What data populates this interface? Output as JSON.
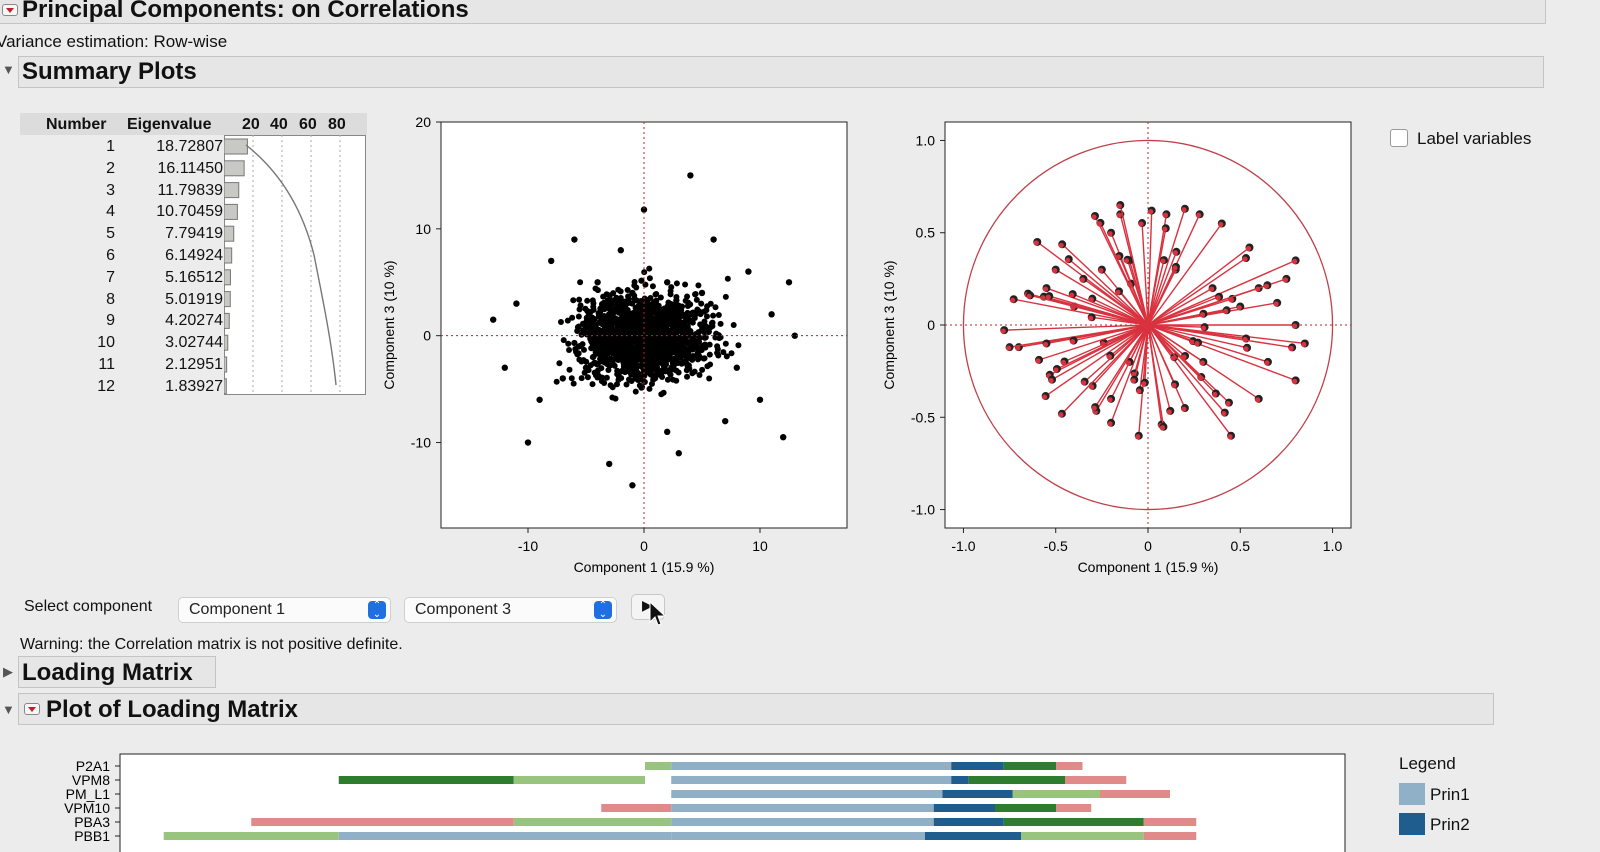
{
  "report": {
    "title": "Principal Components: on Correlations",
    "variance_estimation": "Variance estimation: Row-wise"
  },
  "summary_plots": {
    "title": "Summary Plots",
    "eigen_table": {
      "col_number": "Number",
      "col_eigenvalue": "Eigenvalue",
      "scree_ticks": [
        "20",
        "40",
        "60",
        "80"
      ],
      "rows": [
        {
          "n": "1",
          "v": "18.72807"
        },
        {
          "n": "2",
          "v": "16.11450"
        },
        {
          "n": "3",
          "v": "11.79839"
        },
        {
          "n": "4",
          "v": "10.70459"
        },
        {
          "n": "5",
          "v": "7.79419"
        },
        {
          "n": "6",
          "v": "6.14924"
        },
        {
          "n": "7",
          "v": "5.16512"
        },
        {
          "n": "8",
          "v": "5.01919"
        },
        {
          "n": "9",
          "v": "4.20274"
        },
        {
          "n": "10",
          "v": "3.02744"
        },
        {
          "n": "11",
          "v": "2.12951"
        },
        {
          "n": "12",
          "v": "1.83927"
        }
      ]
    },
    "label_variables": "Label variables"
  },
  "chart_data": [
    {
      "type": "scatter",
      "name": "score-plot",
      "xlabel": "Component 1  (15.9 %)",
      "ylabel": "Component 3  (10 %)",
      "xlim": [
        -17.5,
        17.5
      ],
      "ylim": [
        -18,
        20
      ],
      "xticks": [
        -10,
        0,
        10
      ],
      "yticks": [
        -10,
        0,
        10,
        20
      ],
      "ref_lines": {
        "x": 0,
        "y": 0
      },
      "point_color": "#000000",
      "points": [
        [
          4,
          15
        ],
        [
          0,
          11.8
        ],
        [
          -13,
          1.5
        ],
        [
          -10,
          -10
        ],
        [
          -1,
          -14
        ],
        [
          12.5,
          5
        ],
        [
          13,
          0
        ],
        [
          12,
          -9.5
        ],
        [
          10,
          -6
        ],
        [
          -12,
          -3
        ],
        [
          6,
          9
        ],
        [
          7,
          -8
        ],
        [
          -6,
          9
        ],
        [
          -8,
          7
        ],
        [
          9,
          6
        ],
        [
          -9,
          -6
        ],
        [
          -3,
          -12
        ],
        [
          3,
          -11
        ],
        [
          11,
          2
        ],
        [
          -11,
          3
        ],
        [
          -2,
          8
        ],
        [
          2,
          -9
        ],
        [
          8,
          -3
        ],
        [
          -7,
          -4
        ],
        [
          5,
          4
        ],
        [
          -4,
          5
        ],
        [
          1,
          3
        ],
        [
          -1,
          -2
        ],
        [
          3,
          1
        ],
        [
          -5,
          -3
        ],
        [
          0.5,
          1
        ],
        [
          -0.5,
          -1
        ],
        [
          2,
          2
        ],
        [
          -2,
          1
        ],
        [
          1,
          -1
        ],
        [
          -3,
          2
        ],
        [
          4,
          -2
        ],
        [
          -1,
          4
        ],
        [
          0,
          -3
        ],
        [
          2,
          5
        ]
      ]
    },
    {
      "type": "scatter",
      "name": "loading-plot",
      "xlabel": "Component 1  (15.9 %)",
      "ylabel": "Component 3  (10 %)",
      "xlim": [
        -1.1,
        1.1
      ],
      "ylim": [
        -1.1,
        1.1
      ],
      "xticks": [
        "-1.0",
        "-0.5",
        "0",
        "0.5",
        "1.0"
      ],
      "yticks": [
        "-1.0",
        "-0.5",
        "0",
        "0.5",
        "1.0"
      ],
      "circle_radius": 1.0,
      "arrow_color": "#d9323f",
      "points": [
        [
          -0.6,
          0.45
        ],
        [
          -0.7,
          -0.12
        ],
        [
          -0.75,
          -0.12
        ],
        [
          -0.55,
          -0.1
        ],
        [
          -0.65,
          0.17
        ],
        [
          -0.55,
          0.2
        ],
        [
          -0.5,
          0.3
        ],
        [
          -0.35,
          0.25
        ],
        [
          -0.3,
          -0.33
        ],
        [
          -0.2,
          -0.4
        ],
        [
          -0.2,
          -0.53
        ],
        [
          -0.05,
          -0.6
        ],
        [
          0.2,
          -0.45
        ],
        [
          0.45,
          -0.6
        ],
        [
          0.6,
          -0.4
        ],
        [
          0.8,
          -0.3
        ],
        [
          0.85,
          -0.1
        ],
        [
          0.8,
          0.0
        ],
        [
          0.7,
          0.12
        ],
        [
          0.75,
          0.25
        ],
        [
          0.8,
          0.35
        ],
        [
          0.55,
          0.42
        ],
        [
          0.4,
          0.55
        ],
        [
          0.28,
          0.6
        ],
        [
          0.2,
          0.63
        ],
        [
          0.1,
          0.6
        ],
        [
          0.02,
          0.62
        ],
        [
          -0.15,
          0.6
        ],
        [
          -0.2,
          0.5
        ],
        [
          -0.25,
          0.3
        ],
        [
          -0.1,
          0.35
        ],
        [
          0.15,
          0.3
        ],
        [
          0.35,
          0.2
        ],
        [
          0.5,
          0.1
        ],
        [
          0.3,
          -0.2
        ],
        [
          -0.1,
          -0.2
        ],
        [
          -0.4,
          0.1
        ],
        [
          0.6,
          0.2
        ],
        [
          0.65,
          -0.2
        ],
        [
          -0.15,
          0.65
        ]
      ]
    },
    {
      "type": "bar",
      "name": "loading-matrix-plot",
      "categories": [
        "P2A1",
        "VPM8",
        "PM_L1",
        "VPM10",
        "PBA3",
        "PBB1"
      ],
      "legend_title": "Legend",
      "legend": [
        {
          "name": "Prin1",
          "color": "#8fb0c6"
        },
        {
          "name": "Prin2",
          "color": "#1f5d8e"
        }
      ],
      "segments": [
        {
          "row": 0,
          "parts": [
            [
              0.15,
              0.18,
              "#98c47e"
            ],
            [
              0.18,
              0.5,
              "#8fb0c6"
            ],
            [
              0.5,
              0.56,
              "#1f5d8e"
            ],
            [
              0.56,
              0.62,
              "#2e7d2e"
            ],
            [
              0.62,
              0.65,
              "#e08a8a"
            ]
          ]
        },
        {
          "row": 1,
          "parts": [
            [
              -0.2,
              0.0,
              "#2e7d2e"
            ],
            [
              0.0,
              0.15,
              "#98c47e"
            ],
            [
              0.18,
              0.5,
              "#8fb0c6"
            ],
            [
              0.5,
              0.52,
              "#1f5d8e"
            ],
            [
              0.52,
              0.63,
              "#2e7d2e"
            ],
            [
              0.63,
              0.7,
              "#e08a8a"
            ]
          ]
        },
        {
          "row": 2,
          "parts": [
            [
              0.18,
              0.49,
              "#8fb0c6"
            ],
            [
              0.49,
              0.57,
              "#1f5d8e"
            ],
            [
              0.57,
              0.67,
              "#98c47e"
            ],
            [
              0.67,
              0.75,
              "#e08a8a"
            ]
          ]
        },
        {
          "row": 3,
          "parts": [
            [
              0.1,
              0.18,
              "#e08a8a"
            ],
            [
              0.18,
              0.48,
              "#8fb0c6"
            ],
            [
              0.48,
              0.55,
              "#1f5d8e"
            ],
            [
              0.55,
              0.62,
              "#2e7d2e"
            ],
            [
              0.62,
              0.66,
              "#e08a8a"
            ]
          ]
        },
        {
          "row": 4,
          "parts": [
            [
              -0.3,
              0.0,
              "#e08a8a"
            ],
            [
              0.0,
              0.18,
              "#98c47e"
            ],
            [
              0.18,
              0.48,
              "#8fb0c6"
            ],
            [
              0.48,
              0.56,
              "#1f5d8e"
            ],
            [
              0.56,
              0.72,
              "#2e7d2e"
            ],
            [
              0.72,
              0.78,
              "#e08a8a"
            ]
          ]
        },
        {
          "row": 5,
          "parts": [
            [
              -0.4,
              -0.2,
              "#98c47e"
            ],
            [
              -0.2,
              0.18,
              "#8fb0c6"
            ],
            [
              0.18,
              0.47,
              "#8fb0c6"
            ],
            [
              0.47,
              0.58,
              "#1f5d8e"
            ],
            [
              0.58,
              0.72,
              "#98c47e"
            ],
            [
              0.72,
              0.78,
              "#e08a8a"
            ]
          ]
        }
      ]
    }
  ],
  "select_component": {
    "label": "Select component",
    "first": "Component 1",
    "second": "Component 3"
  },
  "warning": "Warning: the Correlation matrix is not positive definite.",
  "loading_matrix": {
    "title": "Loading Matrix"
  },
  "plot_loading_matrix": {
    "title": "Plot of Loading Matrix"
  }
}
